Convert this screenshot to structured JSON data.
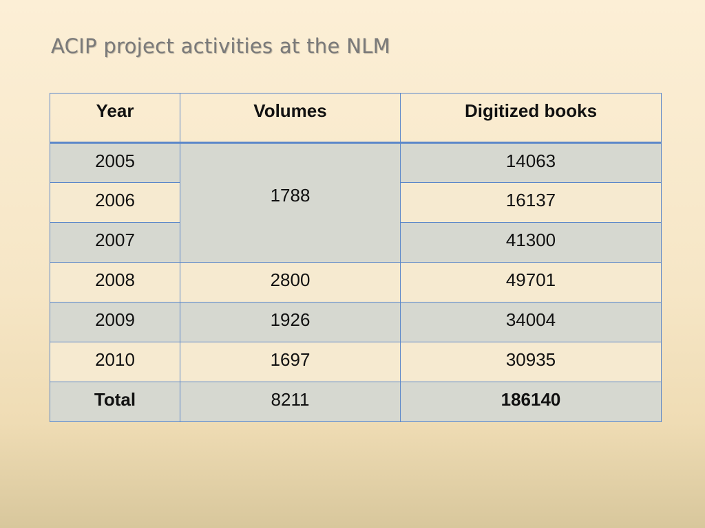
{
  "title": "ACIP project activities at the NLM",
  "table": {
    "headers": [
      "Year",
      "Volumes",
      "Digitized books"
    ],
    "rows": [
      {
        "year": "2005",
        "volumes": "1788",
        "digitized": "14063"
      },
      {
        "year": "2006",
        "volumes": "",
        "digitized": "16137"
      },
      {
        "year": "2007",
        "volumes": "",
        "digitized": "41300"
      },
      {
        "year": "2008",
        "volumes": "2800",
        "digitized": "49701"
      },
      {
        "year": "2009",
        "volumes": "1926",
        "digitized": "34004"
      },
      {
        "year": "2010",
        "volumes": "1697",
        "digitized": "30935"
      }
    ],
    "total": {
      "label": "Total",
      "volumes": "8211",
      "digitized": "186140"
    }
  }
}
